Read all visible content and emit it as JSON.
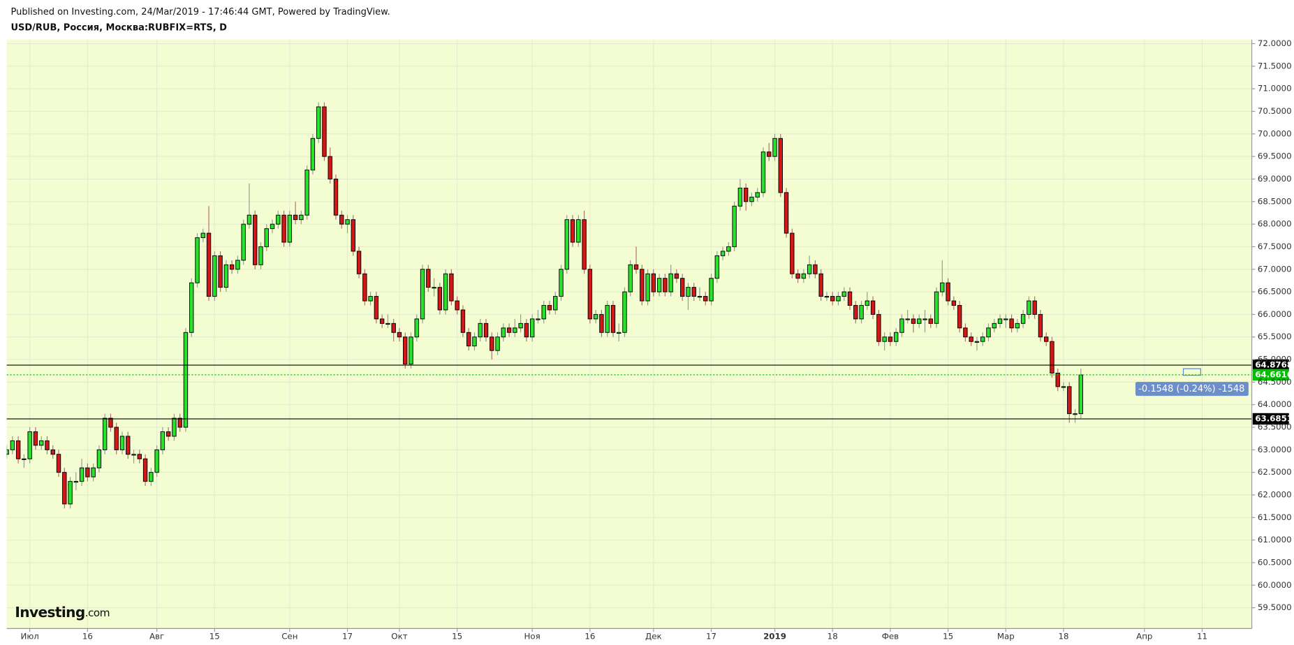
{
  "chart_data": {
    "type": "candlestick",
    "published": "Published on Investing.com, 24/Mar/2019 - 17:46:44 GMT, Powered by TradingView.",
    "title": "USD/RUB, Россия, Москва:RUBFIX=RTS, D",
    "logo": "Investing",
    "logo_suffix": ".com",
    "annotation": "-0.1548 (-0.24%) -1548",
    "up_color": "#27e32a",
    "down_color": "#d31616",
    "background": "#f4fdd1",
    "grid": true,
    "xlim": [
      0,
      215.6
    ],
    "xticks": [
      {
        "value": 4,
        "label": "Июл"
      },
      {
        "value": 14,
        "label": "16"
      },
      {
        "value": 26,
        "label": "Авг"
      },
      {
        "value": 36,
        "label": "15"
      },
      {
        "value": 49,
        "label": "Сен"
      },
      {
        "value": 59,
        "label": "17"
      },
      {
        "value": 68,
        "label": "Окт"
      },
      {
        "value": 78,
        "label": "15"
      },
      {
        "value": 91,
        "label": "Ноя"
      },
      {
        "value": 101,
        "label": "16"
      },
      {
        "value": 112,
        "label": "Дек"
      },
      {
        "value": 122,
        "label": "17"
      },
      {
        "value": 133,
        "label": "2019"
      },
      {
        "value": 143,
        "label": "18"
      },
      {
        "value": 153,
        "label": "Фев"
      },
      {
        "value": 163,
        "label": "15"
      },
      {
        "value": 173,
        "label": "Мар"
      },
      {
        "value": 183,
        "label": "18"
      },
      {
        "value": 197,
        "label": "Апр"
      },
      {
        "value": 207,
        "label": "11"
      }
    ],
    "ylim": [
      59.04,
      72.09
    ],
    "yticks": [
      {
        "value": 59.5,
        "label": "59.5000"
      },
      {
        "value": 60,
        "label": "60.0000"
      },
      {
        "value": 60.5,
        "label": "60.5000"
      },
      {
        "value": 61,
        "label": "61.0000"
      },
      {
        "value": 61.5,
        "label": "61.5000"
      },
      {
        "value": 62,
        "label": "62.0000"
      },
      {
        "value": 62.5,
        "label": "62.5000"
      },
      {
        "value": 63,
        "label": "63.0000"
      },
      {
        "value": 63.5,
        "label": "63.5000"
      },
      {
        "value": 64,
        "label": "64.0000"
      },
      {
        "value": 64.5,
        "label": "64.5000"
      },
      {
        "value": 65,
        "label": "65.0000"
      },
      {
        "value": 65.5,
        "label": "65.5000"
      },
      {
        "value": 66,
        "label": "66.0000"
      },
      {
        "value": 66.5,
        "label": "66.5000"
      },
      {
        "value": 67,
        "label": "67.0000"
      },
      {
        "value": 67.5,
        "label": "67.5000"
      },
      {
        "value": 68,
        "label": "68.0000"
      },
      {
        "value": 68.5,
        "label": "68.5000"
      },
      {
        "value": 69,
        "label": "69.0000"
      },
      {
        "value": 69.5,
        "label": "69.5000"
      },
      {
        "value": 70,
        "label": "70.0000"
      },
      {
        "value": 70.5,
        "label": "70.5000"
      },
      {
        "value": 71,
        "label": "71.0000"
      },
      {
        "value": 71.5,
        "label": "71.5000"
      },
      {
        "value": 72,
        "label": "72.0000"
      }
    ],
    "levels": [
      {
        "value": 64.8768,
        "color": "#000000"
      },
      {
        "value": 63.6851,
        "color": "#000000"
      },
      {
        "value": 64.6616,
        "color": "#00c000",
        "dashed": true
      }
    ],
    "candles": [
      [
        62.9,
        63.1,
        62.8,
        63.0
      ],
      [
        63.0,
        63.3,
        62.9,
        63.2
      ],
      [
        63.2,
        63.3,
        62.7,
        62.8
      ],
      [
        62.8,
        62.9,
        62.6,
        62.8
      ],
      [
        62.8,
        63.5,
        62.7,
        63.4
      ],
      [
        63.4,
        63.5,
        63.0,
        63.1
      ],
      [
        63.1,
        63.3,
        63.0,
        63.2
      ],
      [
        63.2,
        63.3,
        62.9,
        63.0
      ],
      [
        63.0,
        63.1,
        62.8,
        62.9
      ],
      [
        62.9,
        63.0,
        62.4,
        62.5
      ],
      [
        62.5,
        62.6,
        61.7,
        61.8
      ],
      [
        61.8,
        62.4,
        61.7,
        62.3
      ],
      [
        62.3,
        62.5,
        62.1,
        62.3
      ],
      [
        62.3,
        62.8,
        62.2,
        62.6
      ],
      [
        62.6,
        62.7,
        62.3,
        62.4
      ],
      [
        62.4,
        62.7,
        62.3,
        62.6
      ],
      [
        62.6,
        63.1,
        62.5,
        63.0
      ],
      [
        63.0,
        63.8,
        62.9,
        63.7
      ],
      [
        63.7,
        63.8,
        63.4,
        63.5
      ],
      [
        63.5,
        63.6,
        62.9,
        63.0
      ],
      [
        63.0,
        63.4,
        62.9,
        63.3
      ],
      [
        63.3,
        63.4,
        62.8,
        62.9
      ],
      [
        62.9,
        63.0,
        62.7,
        62.9
      ],
      [
        62.9,
        63.0,
        62.7,
        62.8
      ],
      [
        62.8,
        62.9,
        62.2,
        62.3
      ],
      [
        62.3,
        62.6,
        62.2,
        62.5
      ],
      [
        62.5,
        63.1,
        62.4,
        63.0
      ],
      [
        63.0,
        63.5,
        62.9,
        63.4
      ],
      [
        63.4,
        63.5,
        63.2,
        63.3
      ],
      [
        63.3,
        63.8,
        63.2,
        63.7
      ],
      [
        63.7,
        63.8,
        63.4,
        63.5
      ],
      [
        63.5,
        65.7,
        63.4,
        65.6
      ],
      [
        65.6,
        66.8,
        65.5,
        66.7
      ],
      [
        66.7,
        67.8,
        66.6,
        67.7
      ],
      [
        67.7,
        67.9,
        67.6,
        67.8
      ],
      [
        67.8,
        68.4,
        66.3,
        66.4
      ],
      [
        66.4,
        67.4,
        66.3,
        67.3
      ],
      [
        67.3,
        67.4,
        66.5,
        66.6
      ],
      [
        66.6,
        67.2,
        66.5,
        67.1
      ],
      [
        67.1,
        67.2,
        66.9,
        67.0
      ],
      [
        67.0,
        67.3,
        66.9,
        67.2
      ],
      [
        67.2,
        68.1,
        67.1,
        68.0
      ],
      [
        68.0,
        68.9,
        67.9,
        68.2
      ],
      [
        68.2,
        68.3,
        67.0,
        67.1
      ],
      [
        67.1,
        67.6,
        67.0,
        67.5
      ],
      [
        67.5,
        68.0,
        67.4,
        67.9
      ],
      [
        67.9,
        68.1,
        67.8,
        68.0
      ],
      [
        68.0,
        68.3,
        67.9,
        68.2
      ],
      [
        68.2,
        68.3,
        67.5,
        67.6
      ],
      [
        67.6,
        68.3,
        67.5,
        68.2
      ],
      [
        68.2,
        68.5,
        68.0,
        68.1
      ],
      [
        68.1,
        68.3,
        68.0,
        68.2
      ],
      [
        68.2,
        69.3,
        68.1,
        69.2
      ],
      [
        69.2,
        70.0,
        69.1,
        69.9
      ],
      [
        69.9,
        70.7,
        69.8,
        70.6
      ],
      [
        70.6,
        70.7,
        69.4,
        69.5
      ],
      [
        69.5,
        69.7,
        68.9,
        69.0
      ],
      [
        69.0,
        69.1,
        68.1,
        68.2
      ],
      [
        68.2,
        68.3,
        67.9,
        68.0
      ],
      [
        68.0,
        68.2,
        67.8,
        68.1
      ],
      [
        68.1,
        68.2,
        67.3,
        67.4
      ],
      [
        67.4,
        67.5,
        66.8,
        66.9
      ],
      [
        66.9,
        67.0,
        66.2,
        66.3
      ],
      [
        66.3,
        66.5,
        66.2,
        66.4
      ],
      [
        66.4,
        66.5,
        65.8,
        65.9
      ],
      [
        65.9,
        66.0,
        65.7,
        65.8
      ],
      [
        65.8,
        66.0,
        65.7,
        65.8
      ],
      [
        65.8,
        65.9,
        65.4,
        65.6
      ],
      [
        65.6,
        65.7,
        65.4,
        65.5
      ],
      [
        65.5,
        65.6,
        64.8,
        64.9
      ],
      [
        64.9,
        65.6,
        64.8,
        65.5
      ],
      [
        65.5,
        66.0,
        65.4,
        65.9
      ],
      [
        65.9,
        67.1,
        65.8,
        67.0
      ],
      [
        67.0,
        67.1,
        66.5,
        66.6
      ],
      [
        66.6,
        66.8,
        66.4,
        66.6
      ],
      [
        66.6,
        66.7,
        66.0,
        66.1
      ],
      [
        66.1,
        67.0,
        66.0,
        66.9
      ],
      [
        66.9,
        67.0,
        66.2,
        66.3
      ],
      [
        66.3,
        66.4,
        66.0,
        66.1
      ],
      [
        66.1,
        66.2,
        65.5,
        65.6
      ],
      [
        65.6,
        65.7,
        65.2,
        65.3
      ],
      [
        65.3,
        65.6,
        65.2,
        65.5
      ],
      [
        65.5,
        65.9,
        65.4,
        65.8
      ],
      [
        65.8,
        65.9,
        65.4,
        65.5
      ],
      [
        65.5,
        65.6,
        65.0,
        65.2
      ],
      [
        65.2,
        65.6,
        65.1,
        65.5
      ],
      [
        65.5,
        65.8,
        65.4,
        65.7
      ],
      [
        65.7,
        65.8,
        65.5,
        65.6
      ],
      [
        65.6,
        65.9,
        65.5,
        65.7
      ],
      [
        65.7,
        66.0,
        65.6,
        65.8
      ],
      [
        65.8,
        65.9,
        65.4,
        65.5
      ],
      [
        65.5,
        66.0,
        65.4,
        65.9
      ],
      [
        65.9,
        66.1,
        65.8,
        65.9
      ],
      [
        65.9,
        66.3,
        65.8,
        66.2
      ],
      [
        66.2,
        66.3,
        66.0,
        66.1
      ],
      [
        66.1,
        66.5,
        66.0,
        66.4
      ],
      [
        66.4,
        67.1,
        66.3,
        67.0
      ],
      [
        67.0,
        68.2,
        66.9,
        68.1
      ],
      [
        68.1,
        68.2,
        67.5,
        67.6
      ],
      [
        67.6,
        68.2,
        67.5,
        68.1
      ],
      [
        68.1,
        68.3,
        66.9,
        67.0
      ],
      [
        67.0,
        67.1,
        65.8,
        65.9
      ],
      [
        65.9,
        66.1,
        65.8,
        66.0
      ],
      [
        66.0,
        66.1,
        65.5,
        65.6
      ],
      [
        65.6,
        66.3,
        65.5,
        66.2
      ],
      [
        66.2,
        66.3,
        65.5,
        65.6
      ],
      [
        65.6,
        65.8,
        65.4,
        65.6
      ],
      [
        65.6,
        66.6,
        65.5,
        66.5
      ],
      [
        66.5,
        67.2,
        66.4,
        67.1
      ],
      [
        67.1,
        67.5,
        66.9,
        67.0
      ],
      [
        67.0,
        67.1,
        66.2,
        66.3
      ],
      [
        66.3,
        67.0,
        66.2,
        66.9
      ],
      [
        66.9,
        67.0,
        66.4,
        66.5
      ],
      [
        66.5,
        66.9,
        66.4,
        66.8
      ],
      [
        66.8,
        66.9,
        66.4,
        66.5
      ],
      [
        66.5,
        67.1,
        66.4,
        66.9
      ],
      [
        66.9,
        67.0,
        66.7,
        66.8
      ],
      [
        66.8,
        66.9,
        66.3,
        66.4
      ],
      [
        66.4,
        66.7,
        66.1,
        66.6
      ],
      [
        66.6,
        66.7,
        66.3,
        66.4
      ],
      [
        66.4,
        66.6,
        66.3,
        66.4
      ],
      [
        66.4,
        66.5,
        66.2,
        66.3
      ],
      [
        66.3,
        66.9,
        66.2,
        66.8
      ],
      [
        66.8,
        67.4,
        66.7,
        67.3
      ],
      [
        67.3,
        67.5,
        67.2,
        67.4
      ],
      [
        67.4,
        67.6,
        67.3,
        67.5
      ],
      [
        67.5,
        68.5,
        67.4,
        68.4
      ],
      [
        68.4,
        69.0,
        68.3,
        68.8
      ],
      [
        68.8,
        68.9,
        68.3,
        68.5
      ],
      [
        68.5,
        68.7,
        68.4,
        68.6
      ],
      [
        68.6,
        68.8,
        68.5,
        68.7
      ],
      [
        68.7,
        69.7,
        68.6,
        69.6
      ],
      [
        69.6,
        69.8,
        69.4,
        69.5
      ],
      [
        69.5,
        70.0,
        69.4,
        69.9
      ],
      [
        69.9,
        70.0,
        68.6,
        68.7
      ],
      [
        68.7,
        68.8,
        67.7,
        67.8
      ],
      [
        67.8,
        67.9,
        66.8,
        66.9
      ],
      [
        66.9,
        67.0,
        66.7,
        66.8
      ],
      [
        66.8,
        67.0,
        66.7,
        66.9
      ],
      [
        66.9,
        67.3,
        66.8,
        67.1
      ],
      [
        67.1,
        67.2,
        66.8,
        66.9
      ],
      [
        66.9,
        67.0,
        66.3,
        66.4
      ],
      [
        66.4,
        66.5,
        66.3,
        66.4
      ],
      [
        66.4,
        66.5,
        66.2,
        66.3
      ],
      [
        66.3,
        66.5,
        66.2,
        66.4
      ],
      [
        66.4,
        66.6,
        66.3,
        66.5
      ],
      [
        66.5,
        66.6,
        66.1,
        66.2
      ],
      [
        66.2,
        66.3,
        65.8,
        65.9
      ],
      [
        65.9,
        66.3,
        65.8,
        66.2
      ],
      [
        66.2,
        66.5,
        66.1,
        66.3
      ],
      [
        66.3,
        66.4,
        65.9,
        66.0
      ],
      [
        66.0,
        66.1,
        65.3,
        65.4
      ],
      [
        65.4,
        65.6,
        65.2,
        65.5
      ],
      [
        65.5,
        65.6,
        65.3,
        65.4
      ],
      [
        65.4,
        65.7,
        65.3,
        65.6
      ],
      [
        65.6,
        66.0,
        65.5,
        65.9
      ],
      [
        65.9,
        66.1,
        65.8,
        65.9
      ],
      [
        65.9,
        66.0,
        65.6,
        65.8
      ],
      [
        65.8,
        66.0,
        65.7,
        65.9
      ],
      [
        65.9,
        66.1,
        65.6,
        65.9
      ],
      [
        65.9,
        66.0,
        65.7,
        65.8
      ],
      [
        65.8,
        66.6,
        65.7,
        66.5
      ],
      [
        66.5,
        67.2,
        66.4,
        66.7
      ],
      [
        66.7,
        66.8,
        66.2,
        66.3
      ],
      [
        66.3,
        66.4,
        66.1,
        66.2
      ],
      [
        66.2,
        66.3,
        65.6,
        65.7
      ],
      [
        65.7,
        65.8,
        65.4,
        65.5
      ],
      [
        65.5,
        65.6,
        65.3,
        65.4
      ],
      [
        65.4,
        65.5,
        65.2,
        65.4
      ],
      [
        65.4,
        65.6,
        65.3,
        65.5
      ],
      [
        65.5,
        65.8,
        65.4,
        65.7
      ],
      [
        65.7,
        65.9,
        65.6,
        65.8
      ],
      [
        65.8,
        66.0,
        65.7,
        65.9
      ],
      [
        65.9,
        66.0,
        65.7,
        65.9
      ],
      [
        65.9,
        66.0,
        65.6,
        65.7
      ],
      [
        65.7,
        65.9,
        65.6,
        65.8
      ],
      [
        65.8,
        66.1,
        65.7,
        66.0
      ],
      [
        66.0,
        66.4,
        65.9,
        66.3
      ],
      [
        66.3,
        66.4,
        65.9,
        66.0
      ],
      [
        66.0,
        66.1,
        65.4,
        65.5
      ],
      [
        65.5,
        65.6,
        65.3,
        65.4
      ],
      [
        65.4,
        65.5,
        64.6,
        64.7
      ],
      [
        64.7,
        64.8,
        64.3,
        64.4
      ],
      [
        64.4,
        64.5,
        64.3,
        64.4
      ],
      [
        64.4,
        64.5,
        63.6,
        63.8
      ],
      [
        63.8,
        63.9,
        63.6,
        63.8
      ],
      [
        63.8,
        64.8,
        63.7,
        64.66
      ]
    ]
  }
}
